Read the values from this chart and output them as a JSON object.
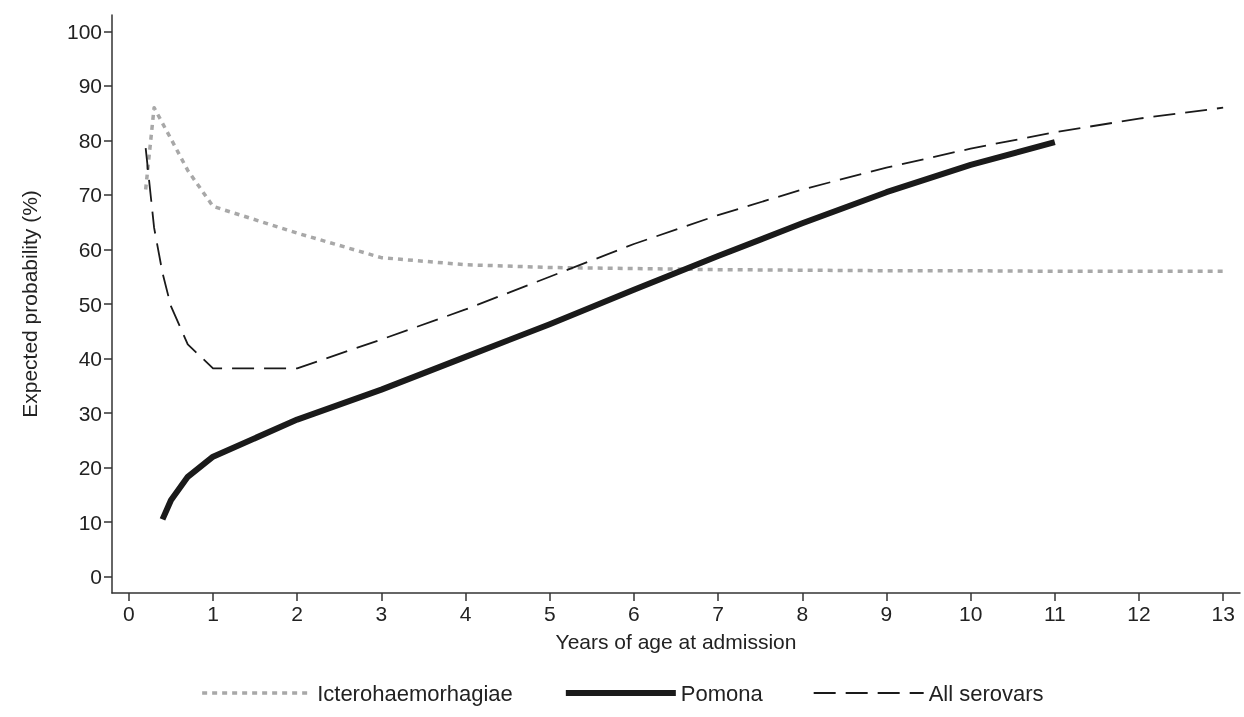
{
  "chart_data": {
    "type": "line",
    "xlabel": "Years of age at admission",
    "ylabel": "Expected probability (%)",
    "xlim": [
      -0.2,
      13.2
    ],
    "xticks": [
      0,
      1,
      2,
      3,
      4,
      5,
      6,
      7,
      8,
      9,
      10,
      11,
      12,
      13
    ],
    "ylim": [
      -3,
      103
    ],
    "yticks": [
      0,
      10,
      20,
      30,
      40,
      50,
      60,
      70,
      80,
      90,
      100
    ],
    "grid": false,
    "legend": "bottom",
    "marker": "none",
    "series": [
      {
        "name": "Icterohaemorhagiae",
        "color": "#a8a8a8",
        "line_style": "dotted",
        "x": [
          0.2,
          0.3,
          0.5,
          0.7,
          1,
          2,
          3,
          4,
          5,
          6,
          7,
          8,
          9,
          10,
          11,
          12,
          13
        ],
        "values": [
          71,
          86,
          80.3,
          74.5,
          67.9,
          63,
          58.5,
          57.2,
          56.7,
          56.5,
          56.3,
          56.2,
          56.1,
          56.1,
          56,
          56,
          56
        ]
      },
      {
        "name": "Pomona",
        "color": "#1a1a1a",
        "line_style": "solid",
        "x": [
          0.4,
          0.5,
          0.7,
          1,
          2,
          3,
          4,
          5,
          6,
          7,
          8,
          9,
          10,
          11
        ],
        "values": [
          10.5,
          14,
          18.3,
          22,
          28.8,
          34.3,
          40.3,
          46.3,
          52.6,
          58.8,
          64.8,
          70.5,
          75.5,
          79.7
        ]
      },
      {
        "name": "All serovars",
        "color": "#1a1a1a",
        "line_style": "dashed",
        "x": [
          0.2,
          0.3,
          0.4,
          0.5,
          0.7,
          1,
          2,
          3,
          4,
          5,
          6,
          7,
          8,
          9,
          10,
          11,
          12,
          13
        ],
        "values": [
          78.6,
          64,
          55.7,
          49.6,
          42.6,
          38.2,
          38.2,
          43.5,
          49,
          55,
          61,
          66.3,
          71,
          75,
          78.5,
          81.5,
          84,
          86
        ]
      }
    ]
  }
}
